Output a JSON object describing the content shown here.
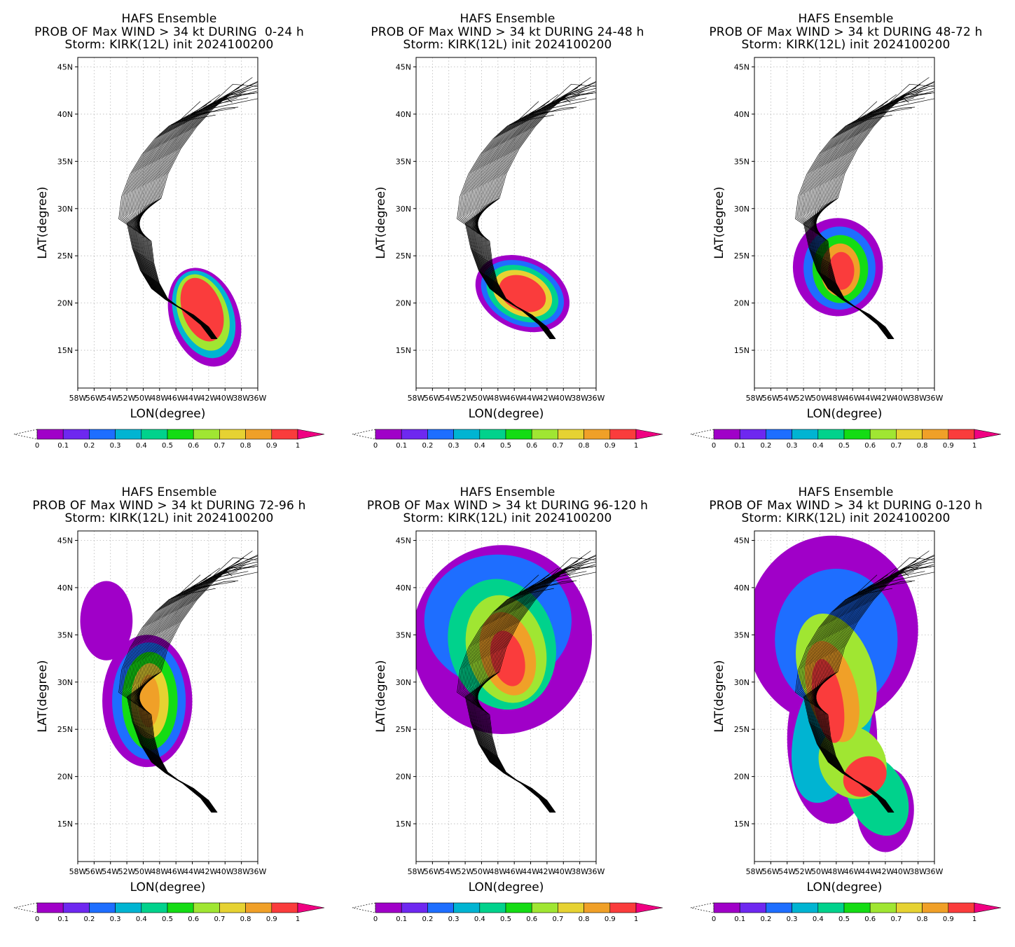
{
  "colorbar": {
    "colors": [
      "#a000c8",
      "#6e28f0",
      "#1e6eff",
      "#00b4d2",
      "#00d28c",
      "#14dc14",
      "#a0e632",
      "#e6d232",
      "#f0a028",
      "#fa3c3c",
      "#f00082"
    ],
    "labels": [
      "0",
      "0.1",
      "0.2",
      "0.3",
      "0.4",
      "0.5",
      "0.6",
      "0.7",
      "0.8",
      "0.9",
      "1"
    ]
  },
  "axes": {
    "xlabel": "LON(degree)",
    "ylabel": "LAT(degree)",
    "lat_ticks": [
      "45N",
      "40N",
      "35N",
      "30N",
      "25N",
      "20N",
      "15N"
    ],
    "lon_ticks": [
      "58W",
      "56W",
      "54W",
      "52W",
      "50W",
      "48W",
      "46W",
      "44W",
      "42W",
      "40W",
      "38W",
      "36W"
    ]
  },
  "panels": [
    {
      "line1": "HAFS Ensemble",
      "line2": "PROB OF Max WIND > 34 kt DURING  0-24 h",
      "line3": "Storm: KIRK(12L) init 2024100200"
    },
    {
      "line1": "HAFS Ensemble",
      "line2": "PROB OF Max WIND > 34 kt DURING 24-48 h",
      "line3": "Storm: KIRK(12L) init 2024100200"
    },
    {
      "line1": "HAFS Ensemble",
      "line2": "PROB OF Max WIND > 34 kt DURING 48-72 h",
      "line3": "Storm: KIRK(12L) init 2024100200"
    },
    {
      "line1": "HAFS Ensemble",
      "line2": "PROB OF Max WIND > 34 kt DURING 72-96 h",
      "line3": "Storm: KIRK(12L) init 2024100200"
    },
    {
      "line1": "HAFS Ensemble",
      "line2": "PROB OF Max WIND > 34 kt DURING 96-120 h",
      "line3": "Storm: KIRK(12L) init 2024100200"
    },
    {
      "line1": "HAFS Ensemble",
      "line2": "PROB OF Max WIND > 34 kt DURING 0-120 h",
      "line3": "Storm: KIRK(12L) init 2024100200"
    }
  ],
  "chart_data": [
    {
      "type": "heatmap",
      "title": "PROB OF Max WIND > 34 kt DURING  0-24 h",
      "xlabel": "LON(degree)",
      "ylabel": "LAT(degree)",
      "xlim": [
        "58W",
        "36W"
      ],
      "ylim": [
        "11N",
        "46N"
      ],
      "color_range": [
        0,
        1
      ],
      "probability_core": {
        "center_lon": "42.5W",
        "center_lat": "19N",
        "max": 1
      }
    },
    {
      "type": "heatmap",
      "title": "PROB OF Max WIND > 34 kt DURING 24-48 h",
      "xlabel": "LON(degree)",
      "ylabel": "LAT(degree)",
      "xlim": [
        "58W",
        "36W"
      ],
      "ylim": [
        "11N",
        "46N"
      ],
      "color_range": [
        0,
        1
      ],
      "probability_core": {
        "center_lon": "45W",
        "center_lat": "21N",
        "max": 1
      }
    },
    {
      "type": "heatmap",
      "title": "PROB OF Max WIND > 34 kt DURING 48-72 h",
      "xlabel": "LON(degree)",
      "ylabel": "LAT(degree)",
      "xlim": [
        "58W",
        "36W"
      ],
      "ylim": [
        "11N",
        "46N"
      ],
      "color_range": [
        0,
        1
      ],
      "probability_core": {
        "center_lon": "47.5W",
        "center_lat": "23.5N",
        "max": 0.95
      }
    },
    {
      "type": "heatmap",
      "title": "PROB OF Max WIND > 34 kt DURING 72-96 h",
      "xlabel": "LON(degree)",
      "ylabel": "LAT(degree)",
      "xlim": [
        "58W",
        "36W"
      ],
      "ylim": [
        "11N",
        "46N"
      ],
      "color_range": [
        0,
        1
      ],
      "probability_core": {
        "center_lon": "49.5W",
        "center_lat": "28N",
        "max": 0.85
      }
    },
    {
      "type": "heatmap",
      "title": "PROB OF Max WIND > 34 kt DURING 96-120 h",
      "xlabel": "LON(degree)",
      "ylabel": "LAT(degree)",
      "xlim": [
        "58W",
        "36W"
      ],
      "ylim": [
        "11N",
        "46N"
      ],
      "color_range": [
        0,
        1
      ],
      "probability_core": {
        "center_lon": "47W",
        "center_lat": "33N",
        "max": 0.9
      }
    },
    {
      "type": "heatmap",
      "title": "PROB OF Max WIND > 34 kt DURING 0-120 h",
      "xlabel": "LON(degree)",
      "ylabel": "LAT(degree)",
      "xlim": [
        "58W",
        "36W"
      ],
      "ylim": [
        "11N",
        "46N"
      ],
      "color_range": [
        0,
        1
      ],
      "probability_core": {
        "center_lon": "47W",
        "center_lat": "27N",
        "max": 1
      }
    }
  ]
}
